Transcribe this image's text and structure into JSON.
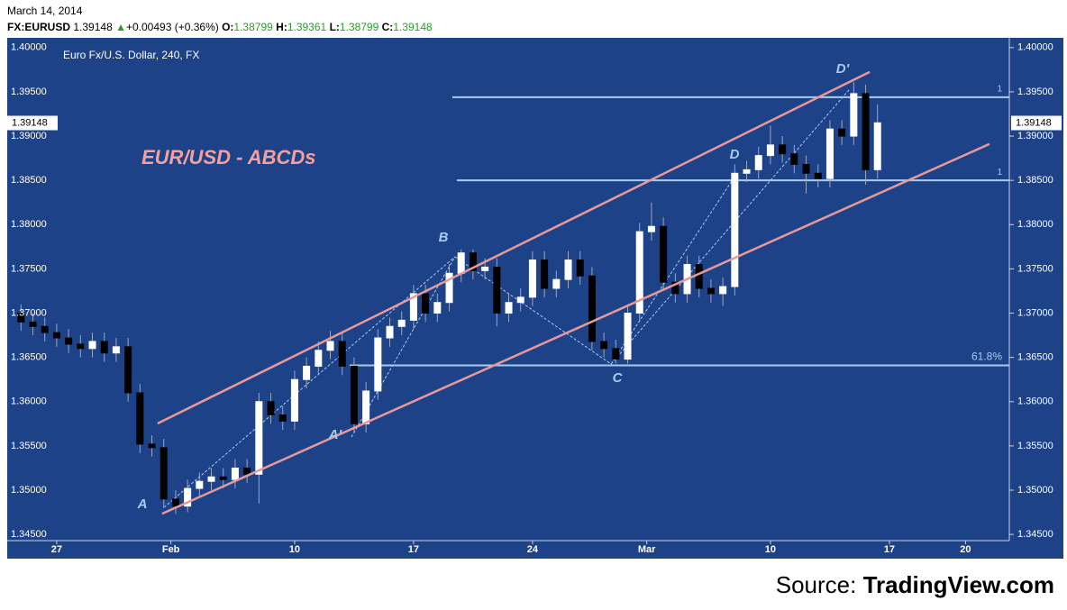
{
  "header": {
    "date": "March 14, 2014",
    "symbol": "FX:EURUSD",
    "last": "1.39148",
    "arrow": "▲",
    "change": "+0.00493 (+0.36%)",
    "open_label": "O:",
    "open": "1.38799",
    "high_label": "H:",
    "high": "1.39361",
    "low_label": "L:",
    "low": "1.38799",
    "close_label": "C:",
    "close": "1.39148"
  },
  "source": {
    "prefix": "Source:",
    "name": "TradingView.com"
  },
  "chart_data": {
    "type": "candlestick",
    "title": "Euro Fx/U.S. Dollar, 240, FX",
    "annotation": "EUR/USD - ABCDs",
    "up_color": "#ffffff",
    "down_color": "#000000",
    "wick_color": "#9aa6c0",
    "background": "#1e4288",
    "xlim": [
      -2.08,
      40.04
    ],
    "ylim": [
      1.3443,
      1.4011
    ],
    "xticks": [
      {
        "value": 0,
        "label": "27"
      },
      {
        "value": 4.8,
        "label": "Feb"
      },
      {
        "value": 10,
        "label": "10"
      },
      {
        "value": 15,
        "label": "17"
      },
      {
        "value": 20,
        "label": "24"
      },
      {
        "value": 24.8,
        "label": "Mar"
      },
      {
        "value": 30,
        "label": "10"
      },
      {
        "value": 35,
        "label": "17"
      },
      {
        "value": 38.2,
        "label": "20"
      }
    ],
    "yticks": [
      {
        "value": 1.345,
        "label": "1.34500"
      },
      {
        "value": 1.35,
        "label": "1.35000"
      },
      {
        "value": 1.355,
        "label": "1.35500"
      },
      {
        "value": 1.36,
        "label": "1.36000"
      },
      {
        "value": 1.365,
        "label": "1.36500"
      },
      {
        "value": 1.37,
        "label": "1.37000"
      },
      {
        "value": 1.375,
        "label": "1.37500"
      },
      {
        "value": 1.38,
        "label": "1.38000"
      },
      {
        "value": 1.385,
        "label": "1.38500"
      },
      {
        "value": 1.39,
        "label": "1.39000"
      },
      {
        "value": 1.395,
        "label": "1.39500"
      },
      {
        "value": 1.4,
        "label": "1.40000"
      }
    ],
    "last_price": {
      "value": 1.39148,
      "label": "1.39148"
    },
    "x": [
      -1.5,
      -1,
      -0.5,
      0,
      0.5,
      1,
      1.5,
      2,
      2.5,
      3,
      3.5,
      4,
      4.5,
      5,
      5.5,
      6,
      6.5,
      7,
      7.5,
      8,
      8.5,
      9,
      9.5,
      10,
      10.5,
      11,
      11.5,
      12,
      12.5,
      13,
      13.5,
      14,
      14.5,
      15,
      15.5,
      16,
      16.5,
      17,
      17.5,
      18,
      18.5,
      19,
      19.5,
      20,
      20.5,
      21,
      21.5,
      22,
      22.5,
      23,
      23.5,
      24,
      24.5,
      25,
      25.5,
      26,
      26.5,
      27,
      27.5,
      28,
      28.5,
      29,
      29.5,
      30,
      30.5,
      31,
      31.5,
      32,
      32.5,
      33,
      33.5,
      34,
      34.5
    ],
    "open": [
      1.37,
      1.369,
      1.3685,
      1.3678,
      1.3672,
      1.3665,
      1.366,
      1.3668,
      1.3655,
      1.3662,
      1.361,
      1.3552,
      1.3548,
      1.349,
      1.3482,
      1.3502,
      1.351,
      1.3515,
      1.3512,
      1.3525,
      1.3518,
      1.36,
      1.3585,
      1.3578,
      1.3625,
      1.364,
      1.3658,
      1.3668,
      1.364,
      1.3575,
      1.3612,
      1.3672,
      1.3685,
      1.3692,
      1.3722,
      1.37,
      1.3712,
      1.3745,
      1.3768,
      1.3748,
      1.3752,
      1.37,
      1.3712,
      1.3718,
      1.376,
      1.3728,
      1.3738,
      1.376,
      1.3742,
      1.3668,
      1.366,
      1.3648,
      1.37,
      1.3792,
      1.3798,
      1.3735,
      1.3722,
      1.3755,
      1.3728,
      1.3722,
      1.373,
      1.3858,
      1.3862,
      1.3878,
      1.389,
      1.388,
      1.3868,
      1.3858,
      1.3852,
      1.3908,
      1.39,
      1.3948,
      1.3862
    ],
    "high": [
      1.371,
      1.37,
      1.3695,
      1.3688,
      1.3682,
      1.3675,
      1.3678,
      1.3678,
      1.3672,
      1.3672,
      1.362,
      1.3562,
      1.3558,
      1.35,
      1.3512,
      1.352,
      1.3525,
      1.3525,
      1.3535,
      1.3535,
      1.361,
      1.361,
      1.3595,
      1.3635,
      1.365,
      1.3668,
      1.368,
      1.3678,
      1.365,
      1.3622,
      1.3682,
      1.3695,
      1.3702,
      1.3732,
      1.3732,
      1.3722,
      1.3755,
      1.3772,
      1.3772,
      1.3762,
      1.3762,
      1.3722,
      1.3728,
      1.377,
      1.377,
      1.3748,
      1.377,
      1.377,
      1.3752,
      1.3678,
      1.367,
      1.371,
      1.3802,
      1.3825,
      1.3808,
      1.3745,
      1.3765,
      1.3765,
      1.3738,
      1.374,
      1.3868,
      1.3872,
      1.3888,
      1.3912,
      1.39,
      1.389,
      1.3878,
      1.3868,
      1.3918,
      1.3918,
      1.3961,
      1.3958,
      1.3936
    ],
    "low": [
      1.368,
      1.3675,
      1.3668,
      1.3662,
      1.3655,
      1.365,
      1.365,
      1.3645,
      1.3645,
      1.36,
      1.3542,
      1.3538,
      1.348,
      1.3473,
      1.3475,
      1.3492,
      1.35,
      1.3502,
      1.3502,
      1.3508,
      1.3485,
      1.3575,
      1.3568,
      1.3568,
      1.3615,
      1.363,
      1.3648,
      1.363,
      1.3565,
      1.3565,
      1.3602,
      1.3662,
      1.3675,
      1.3682,
      1.369,
      1.369,
      1.3702,
      1.3735,
      1.3738,
      1.3738,
      1.3685,
      1.369,
      1.3702,
      1.3708,
      1.3718,
      1.3718,
      1.3728,
      1.3732,
      1.3658,
      1.365,
      1.3643,
      1.3643,
      1.369,
      1.3782,
      1.3725,
      1.3712,
      1.3712,
      1.3718,
      1.3712,
      1.3708,
      1.372,
      1.3848,
      1.3852,
      1.3868,
      1.387,
      1.3858,
      1.3835,
      1.3842,
      1.3842,
      1.389,
      1.389,
      1.3845,
      1.3852
    ],
    "close": [
      1.369,
      1.3685,
      1.3678,
      1.3672,
      1.3665,
      1.366,
      1.3668,
      1.3655,
      1.3662,
      1.361,
      1.3552,
      1.3548,
      1.349,
      1.3482,
      1.3502,
      1.351,
      1.3515,
      1.3512,
      1.3525,
      1.3518,
      1.36,
      1.3585,
      1.3578,
      1.3625,
      1.364,
      1.3658,
      1.3668,
      1.364,
      1.3575,
      1.3612,
      1.3672,
      1.3685,
      1.3692,
      1.3722,
      1.37,
      1.3712,
      1.3745,
      1.3768,
      1.3748,
      1.3752,
      1.37,
      1.3712,
      1.3718,
      1.376,
      1.3728,
      1.3738,
      1.376,
      1.3742,
      1.3668,
      1.366,
      1.3648,
      1.37,
      1.3792,
      1.3798,
      1.3735,
      1.3722,
      1.3755,
      1.3728,
      1.3722,
      1.373,
      1.3858,
      1.3862,
      1.3878,
      1.389,
      1.388,
      1.3868,
      1.3858,
      1.3852,
      1.3908,
      1.39,
      1.3948,
      1.3862,
      1.3915
    ],
    "channel_color": "#e89a9a",
    "channel_lines": [
      [
        [
          4.24,
          1.35753
        ],
        [
          34.17,
          1.39725
        ]
      ],
      [
        [
          4.43,
          1.34734
        ],
        [
          39.2,
          1.3891
        ]
      ]
    ],
    "level_color": "#a8ccf0",
    "levels": [
      {
        "value": 1.3944,
        "from": 16.63,
        "label": "1"
      },
      {
        "value": 1.385,
        "from": 16.82,
        "label": "1"
      },
      {
        "value": 1.3641,
        "from": 12.31,
        "label": "61.8%"
      }
    ],
    "pattern_lines": [
      [
        [
          4.51,
          1.34805
        ],
        [
          16.74,
          1.37637
        ]
      ],
      [
        [
          12.39,
          1.356
        ],
        [
          16.74,
          1.37637
        ]
      ],
      [
        [
          16.74,
          1.37637
        ],
        [
          23.3,
          1.36425
        ]
      ],
      [
        [
          23.3,
          1.36425
        ],
        [
          28.6,
          1.38584
        ]
      ],
      [
        [
          23.3,
          1.36425
        ],
        [
          33.3,
          1.39521
        ]
      ]
    ],
    "point_labels": [
      "A",
      "A'",
      "B",
      "C",
      "D",
      "D'"
    ]
  }
}
